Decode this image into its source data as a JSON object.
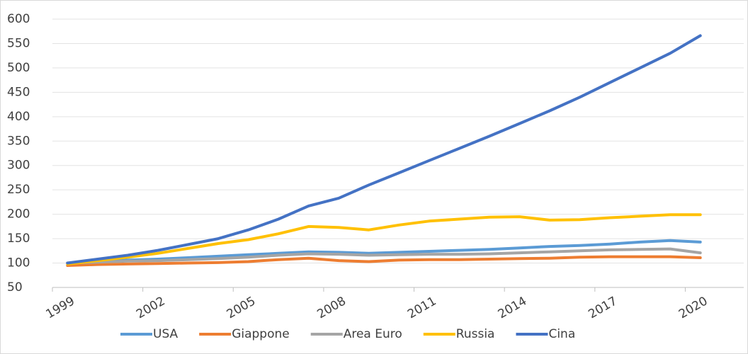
{
  "chart_data": {
    "type": "line",
    "categories": [
      "1999",
      null,
      null,
      "2002",
      null,
      null,
      "2005",
      null,
      null,
      "2008",
      null,
      null,
      "2011",
      null,
      null,
      "2014",
      null,
      null,
      "2017",
      null,
      null,
      "2020"
    ],
    "series": [
      {
        "name": "USA",
        "color": "#5b9bd5",
        "values": [
          100,
          103,
          106,
          108,
          111,
          114,
          117,
          120,
          123,
          122,
          120,
          122,
          124,
          126,
          128,
          131,
          134,
          136,
          139,
          143,
          146,
          143
        ]
      },
      {
        "name": "Giappone",
        "color": "#ed7d31",
        "values": [
          95,
          97,
          98,
          99,
          100,
          101,
          103,
          107,
          110,
          105,
          103,
          106,
          107,
          107,
          108,
          109,
          110,
          112,
          113,
          113,
          113,
          111
        ]
      },
      {
        "name": "Area Euro",
        "color": "#a5a5a5",
        "values": [
          100,
          102,
          104,
          105,
          107,
          109,
          112,
          116,
          119,
          118,
          116,
          117,
          118,
          118,
          119,
          121,
          123,
          125,
          127,
          128,
          129,
          121
        ]
      },
      {
        "name": "Russia",
        "color": "#ffc000",
        "values": [
          98,
          105,
          112,
          120,
          130,
          140,
          148,
          160,
          175,
          173,
          168,
          178,
          186,
          190,
          194,
          195,
          188,
          189,
          193,
          196,
          199,
          199
        ]
      },
      {
        "name": "Cina",
        "color": "#4472c4",
        "values": [
          100,
          108,
          116,
          126,
          138,
          150,
          168,
          190,
          217,
          233,
          260,
          285,
          310,
          335,
          360,
          386,
          412,
          440,
          470,
          500,
          530,
          566
        ]
      }
    ],
    "ylim": [
      50,
      600
    ],
    "yticks": [
      50,
      100,
      150,
      200,
      250,
      300,
      350,
      400,
      450,
      500,
      550,
      600
    ],
    "grid": true,
    "legend": "bottom"
  }
}
